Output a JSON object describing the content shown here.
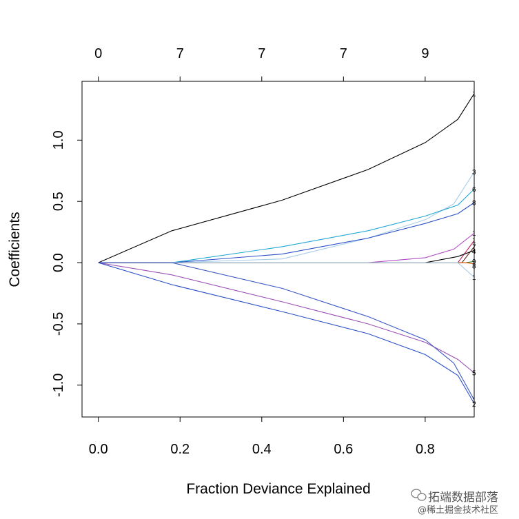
{
  "chart_data": {
    "type": "line",
    "xlabel": "Fraction Deviance Explained",
    "ylabel": "Coefficients",
    "xlim": [
      -0.04,
      0.92
    ],
    "ylim": [
      -1.26,
      1.48
    ],
    "x_ticks": [
      0.0,
      0.2,
      0.4,
      0.6,
      0.8
    ],
    "x_tick_labels": [
      "0.0",
      "0.2",
      "0.4",
      "0.6",
      "0.8"
    ],
    "y_ticks": [
      -1.0,
      -0.5,
      0.0,
      0.5,
      1.0
    ],
    "y_tick_labels": [
      "-1.0",
      "-0.5",
      "0.0",
      "0.5",
      "1.0"
    ],
    "top_axis": {
      "x": [
        0.0,
        0.2,
        0.4,
        0.6,
        0.8
      ],
      "labels": [
        "0",
        "7",
        "7",
        "7",
        "9"
      ]
    },
    "series": [
      {
        "label": "1",
        "color": "#000000",
        "x": [
          0.0,
          0.18,
          0.45,
          0.66,
          0.8,
          0.88,
          0.92
        ],
        "y": [
          0.0,
          0.26,
          0.51,
          0.76,
          0.98,
          1.17,
          1.38
        ]
      },
      {
        "label": "3",
        "color": "#a6cce8",
        "x": [
          0.0,
          0.18,
          0.45,
          0.66,
          0.8,
          0.87,
          0.92
        ],
        "y": [
          0.0,
          0.0,
          0.03,
          0.2,
          0.35,
          0.48,
          0.74
        ]
      },
      {
        "label": "6",
        "color": "#1fa7d6",
        "x": [
          0.0,
          0.18,
          0.45,
          0.66,
          0.8,
          0.88,
          0.92
        ],
        "y": [
          0.0,
          0.0,
          0.13,
          0.26,
          0.38,
          0.47,
          0.6
        ]
      },
      {
        "label": "8",
        "color": "#2a4fc9",
        "x": [
          0.0,
          0.18,
          0.45,
          0.66,
          0.8,
          0.88,
          0.92
        ],
        "y": [
          0.0,
          0.0,
          0.07,
          0.2,
          0.32,
          0.4,
          0.49
        ]
      },
      {
        "label": "1",
        "color": "#b04fc4",
        "x": [
          0.0,
          0.66,
          0.8,
          0.87,
          0.92
        ],
        "y": [
          0.0,
          0.0,
          0.04,
          0.11,
          0.24
        ]
      },
      {
        "label": "1",
        "color": "#c2185b",
        "x": [
          0.0,
          0.88,
          0.92
        ],
        "y": [
          0.0,
          0.0,
          0.18
        ]
      },
      {
        "label": "7",
        "color": "#5c2a1a",
        "x": [
          0.0,
          0.89,
          0.92
        ],
        "y": [
          0.0,
          0.0,
          0.13
        ]
      },
      {
        "label": "4",
        "color": "#000000",
        "x": [
          0.0,
          0.8,
          0.88,
          0.92
        ],
        "y": [
          0.0,
          0.0,
          0.05,
          0.1
        ]
      },
      {
        "label": "9",
        "color": "#2e7d32",
        "x": [
          0.0,
          0.9,
          0.92
        ],
        "y": [
          0.0,
          0.0,
          0.01
        ]
      },
      {
        "label": "8",
        "color": "#e65100",
        "x": [
          0.0,
          0.9,
          0.92
        ],
        "y": [
          0.0,
          0.0,
          -0.01
        ]
      },
      {
        "label": "1",
        "color": "#a6cce8",
        "x": [
          0.0,
          0.88,
          0.92
        ],
        "y": [
          0.0,
          0.0,
          -0.12
        ]
      },
      {
        "label": "5",
        "color": "#9b4fb5",
        "x": [
          0.0,
          0.18,
          0.45,
          0.66,
          0.8,
          0.88,
          0.92
        ],
        "y": [
          0.0,
          -0.1,
          -0.32,
          -0.5,
          -0.65,
          -0.79,
          -0.9
        ]
      },
      {
        "label": "2",
        "color": "#2a4fc9",
        "x": [
          0.0,
          0.18,
          0.45,
          0.66,
          0.8,
          0.88,
          0.92
        ],
        "y": [
          0.0,
          -0.18,
          -0.4,
          -0.58,
          -0.75,
          -0.92,
          -1.15
        ]
      },
      {
        "label": "1",
        "color": "#3a57c4",
        "x": [
          0.0,
          0.18,
          0.45,
          0.66,
          0.8,
          0.87,
          0.92
        ],
        "y": [
          0.0,
          0.0,
          -0.21,
          -0.44,
          -0.63,
          -0.82,
          -1.12
        ]
      }
    ]
  },
  "watermark": {
    "line1": "拓端数据部落",
    "line2": "@稀土掘金技术社区"
  }
}
